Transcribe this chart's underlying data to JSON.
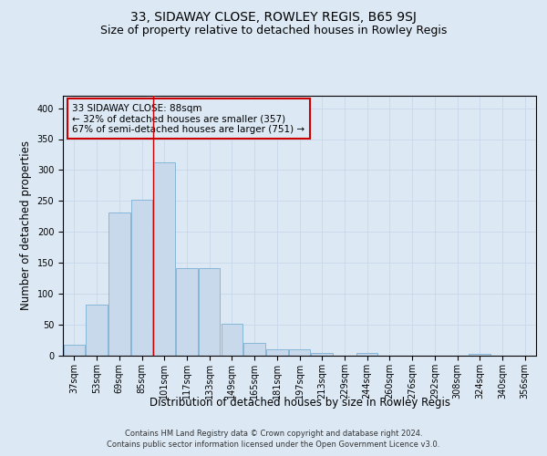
{
  "title": "33, SIDAWAY CLOSE, ROWLEY REGIS, B65 9SJ",
  "subtitle": "Size of property relative to detached houses in Rowley Regis",
  "xlabel": "Distribution of detached houses by size in Rowley Regis",
  "ylabel": "Number of detached properties",
  "footer_line1": "Contains HM Land Registry data © Crown copyright and database right 2024.",
  "footer_line2": "Contains public sector information licensed under the Open Government Licence v3.0.",
  "categories": [
    "37sqm",
    "53sqm",
    "69sqm",
    "85sqm",
    "101sqm",
    "117sqm",
    "133sqm",
    "149sqm",
    "165sqm",
    "181sqm",
    "197sqm",
    "213sqm",
    "229sqm",
    "244sqm",
    "260sqm",
    "276sqm",
    "292sqm",
    "308sqm",
    "324sqm",
    "340sqm",
    "356sqm"
  ],
  "values": [
    17,
    83,
    231,
    252,
    313,
    142,
    142,
    51,
    21,
    10,
    10,
    5,
    0,
    4,
    0,
    0,
    0,
    0,
    3,
    0,
    0
  ],
  "bar_color": "#c9d9ec",
  "bar_edge_color": "#7bafd4",
  "grid_color": "#c8d8e8",
  "annotation_text": "33 SIDAWAY CLOSE: 88sqm\n← 32% of detached houses are smaller (357)\n67% of semi-detached houses are larger (751) →",
  "annotation_box_edge": "#cc0000",
  "vline_x": 3.5,
  "vline_color": "#cc0000",
  "ylim": [
    0,
    420
  ],
  "yticks": [
    0,
    50,
    100,
    150,
    200,
    250,
    300,
    350,
    400
  ],
  "background_color": "#dce9f5",
  "plot_bg_color": "#dce9f5",
  "title_fontsize": 10,
  "subtitle_fontsize": 9,
  "axis_label_fontsize": 8.5,
  "tick_fontsize": 7,
  "annotation_fontsize": 7.5,
  "footer_fontsize": 6
}
